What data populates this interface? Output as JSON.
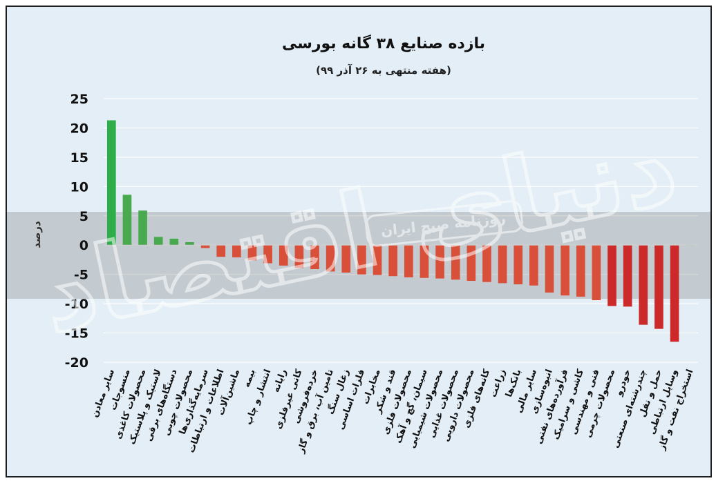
{
  "chart_data": {
    "type": "bar",
    "title": "بازده صنایع ۳۸ گانه بورسی",
    "subtitle": "(هفته منتهی به ۲۶ آذر ۹۹)",
    "ylabel": "درصد",
    "xlabel": "",
    "ylim": [
      -20,
      25
    ],
    "yticks": [
      25,
      20,
      15,
      10,
      5,
      0,
      -5,
      -10,
      -15,
      -20
    ],
    "ytick_labels": [
      "25",
      "20",
      "15",
      "10",
      "5",
      "0",
      "-5",
      "-10",
      "-15",
      "-20"
    ],
    "grid": true,
    "categories": [
      "سایر معادن",
      "منسوجات",
      "محصولات کاغذی",
      "لاستیک و پلاستیک",
      "دستگاه‌های برقی",
      "محصولات چوبی",
      "سرمایه‌گذاری‌ها",
      "اطلاعات و ارتباطات",
      "ماشین‌آلات",
      "بیمه",
      "انتشار و چاپ",
      "رایانه",
      "کانی غیرفلزی",
      "خرده‌فروشی",
      "تامین آب، برق و گاز",
      "زغال سنگ",
      "فلزات اساسی",
      "مخابرات",
      "قند و شکر",
      "محصولات فلزی",
      "سیمان، گچ و آهک",
      "محصولات شیمیایی",
      "محصولات غذایی",
      "محصولات دارویی",
      "کانه‌های فلزی",
      "زراعت",
      "بانک‌ها",
      "سایر مالی",
      "انبوه‌سازی",
      "فرآورده‌های نفتی",
      "کاشی و سرامیک",
      "فنی و مهندسی",
      "محصولات چرمی",
      "خودرو",
      "چندرشته‌ای صنعتی",
      "حمل و نقل",
      "وسایل ارتباطی",
      "استخراج نفت و گاز"
    ],
    "values": [
      21.3,
      8.6,
      5.9,
      1.4,
      1.1,
      0.5,
      -0.5,
      -2.0,
      -2.1,
      -2.6,
      -3.1,
      -3.5,
      -3.9,
      -4.1,
      -4.5,
      -4.7,
      -5.0,
      -5.1,
      -5.3,
      -5.5,
      -5.6,
      -5.7,
      -5.9,
      -6.1,
      -6.3,
      -6.5,
      -6.7,
      -6.9,
      -8.1,
      -8.6,
      -8.8,
      -9.4,
      -10.4,
      -10.5,
      -13.6,
      -14.3,
      -16.5,
      0
    ],
    "colors": {
      "positive": "#49a94f",
      "positive_strong": "#2eae4a",
      "negative": "#d9503a",
      "negative_strong": "#cc2a2a"
    }
  },
  "watermark": {
    "text": "روزنامه صبح ایران",
    "logo": "دنیای اقتصاد"
  }
}
